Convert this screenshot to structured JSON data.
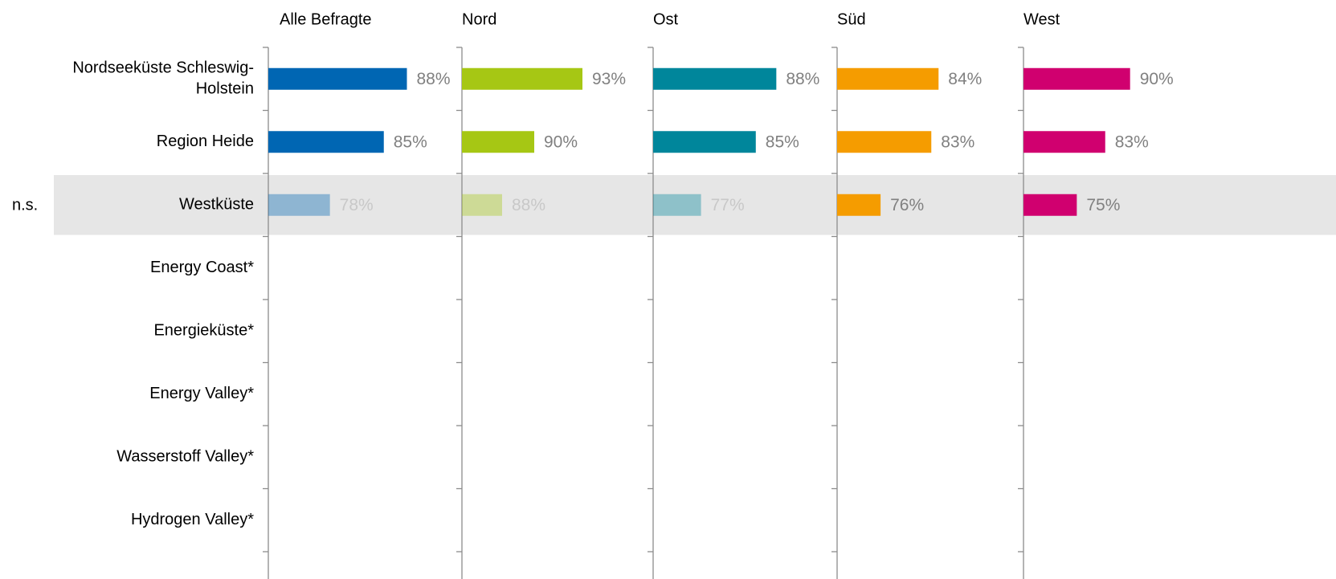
{
  "chart_data": {
    "type": "bar",
    "orientation": "horizontal",
    "annotation": "n.s.",
    "highlight_row": 2,
    "categories": [
      "Nordseeküste Schleswig-Holstein",
      "Region Heide",
      "Westküste",
      "Energy Coast*",
      "Energieküste*",
      "Energy Valley*",
      "Wasserstoff Valley*",
      "Hydrogen Valley*"
    ],
    "series": [
      {
        "name": "Alle Befragte",
        "color": "#0066b3",
        "xlim": [
          70,
          94
        ],
        "faded_rows": [
          2
        ],
        "values": [
          88,
          85,
          78,
          null,
          null,
          null,
          null,
          null
        ],
        "value_labels": [
          "88%",
          "85%",
          "78%",
          null,
          null,
          null,
          null,
          null
        ]
      },
      {
        "name": "Nord",
        "color": "#a6c714",
        "xlim": [
          85.5,
          97
        ],
        "faded_rows": [
          2
        ],
        "values": [
          93,
          90,
          88,
          null,
          null,
          null,
          null,
          null
        ],
        "value_labels": [
          "93%",
          "90%",
          "88%",
          null,
          null,
          null,
          null,
          null
        ]
      },
      {
        "name": "Ost",
        "color": "#00869b",
        "xlim": [
          70,
          97
        ],
        "faded_rows": [
          2
        ],
        "values": [
          88,
          85,
          77,
          null,
          null,
          null,
          null,
          null
        ],
        "value_labels": [
          "88%",
          "85%",
          "77%",
          null,
          null,
          null,
          null,
          null
        ]
      },
      {
        "name": "Süd",
        "color": "#f59c00",
        "xlim": [
          70,
          95.5
        ],
        "faded_rows": [],
        "values": [
          84,
          83,
          76,
          null,
          null,
          null,
          null,
          null
        ],
        "value_labels": [
          "84%",
          "83%",
          "76%",
          null,
          null,
          null,
          null,
          null
        ]
      },
      {
        "name": "West",
        "color": "#d0006f",
        "xlim": [
          60,
          112
        ],
        "faded_rows": [],
        "values": [
          90,
          83,
          75,
          null,
          null,
          null,
          null,
          null
        ],
        "value_labels": [
          "90%",
          "83%",
          "75%",
          null,
          null,
          null,
          null,
          null
        ]
      }
    ]
  }
}
